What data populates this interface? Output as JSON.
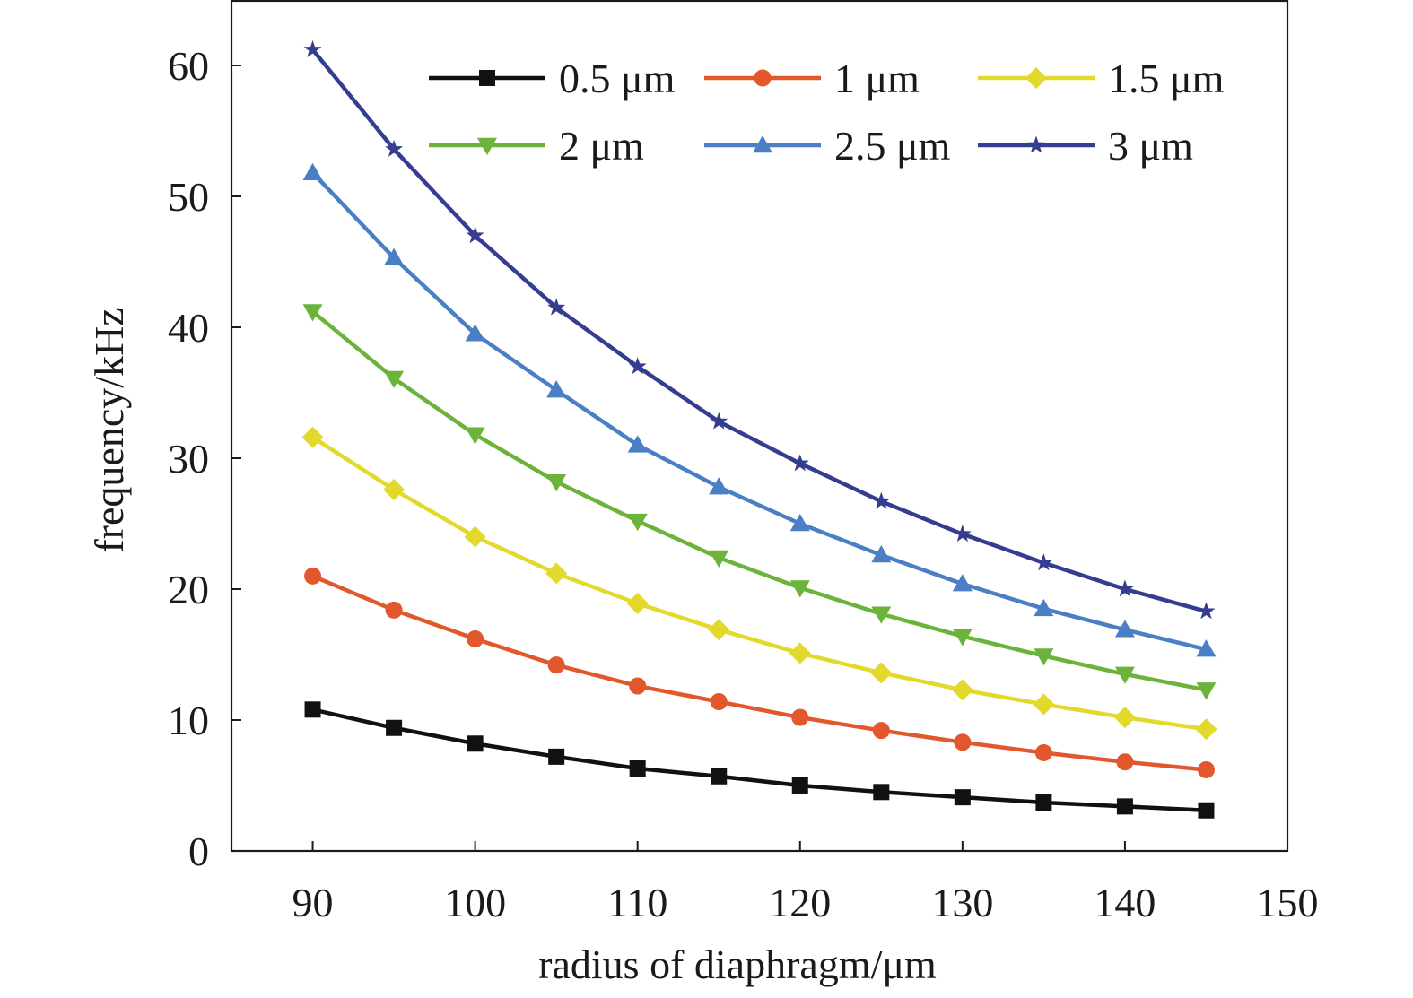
{
  "chart_data": {
    "type": "line",
    "xlabel": "radius of diaphragm/μm",
    "ylabel": "frequency/kHz",
    "xlim": [
      85,
      150
    ],
    "ylim": [
      0,
      65
    ],
    "xticks": [
      90,
      100,
      110,
      120,
      130,
      140,
      150
    ],
    "yticks": [
      0,
      10,
      20,
      30,
      40,
      50,
      60
    ],
    "x": [
      90,
      95,
      100,
      105,
      110,
      115,
      120,
      125,
      130,
      135,
      140,
      145
    ],
    "grid": false,
    "legend_position": "top-right",
    "series": [
      {
        "name": "0.5 μm",
        "color": "#111111",
        "marker": "square",
        "values": [
          10.8,
          9.4,
          8.2,
          7.2,
          6.3,
          5.7,
          5.0,
          4.5,
          4.1,
          3.7,
          3.4,
          3.1
        ]
      },
      {
        "name": "1 μm",
        "color": "#e2572b",
        "marker": "circle",
        "values": [
          21.0,
          18.4,
          16.2,
          14.2,
          12.6,
          11.4,
          10.2,
          9.2,
          8.3,
          7.5,
          6.8,
          6.2
        ]
      },
      {
        "name": "1.5 μm",
        "color": "#e3d92b",
        "marker": "diamond",
        "values": [
          31.6,
          27.6,
          24.0,
          21.2,
          18.9,
          16.9,
          15.1,
          13.6,
          12.3,
          11.2,
          10.2,
          9.3
        ]
      },
      {
        "name": "2 μm",
        "color": "#6bb33b",
        "marker": "triangle-down",
        "values": [
          41.2,
          36.1,
          31.8,
          28.2,
          25.2,
          22.4,
          20.1,
          18.1,
          16.4,
          14.9,
          13.5,
          12.3
        ]
      },
      {
        "name": "2.5 μm",
        "color": "#4a7fc6",
        "marker": "triangle-up",
        "values": [
          51.8,
          45.3,
          39.5,
          35.2,
          31.0,
          27.8,
          25.0,
          22.6,
          20.4,
          18.5,
          16.9,
          15.4
        ]
      },
      {
        "name": "3 μm",
        "color": "#343d8f",
        "marker": "star",
        "values": [
          61.2,
          53.6,
          47.0,
          41.5,
          37.0,
          32.8,
          29.6,
          26.7,
          24.2,
          22.0,
          20.0,
          18.3
        ]
      }
    ]
  }
}
